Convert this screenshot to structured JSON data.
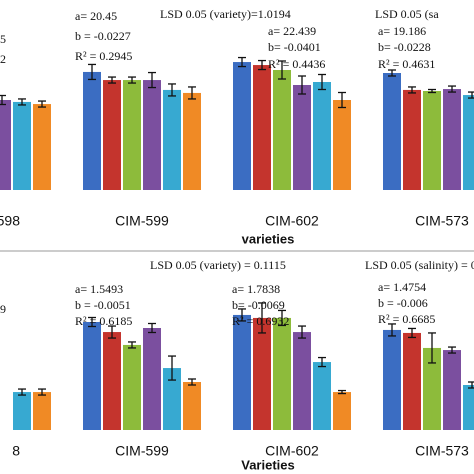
{
  "chart_data": [
    {
      "type": "bar",
      "categories": [
        "598",
        "CIM-599",
        "CIM-602",
        "CIM-573"
      ],
      "x_label": "varieties",
      "ylim": [
        0,
        100
      ],
      "annotations": [
        "5",
        "2",
        "a= 20.45",
        "b = -0.0227",
        "R² = 0.2945",
        "LSD 0.05 (variety)=1.0194",
        "a= 22.439",
        "b= -0.0401",
        "R² = 0.4436",
        "LSD 0.05 (sa",
        "a= 19.186",
        "b= -0.0228",
        "R² = 0.4631"
      ],
      "series": [
        {
          "color": "#3b6dc2",
          "values": [
            null,
            78.7,
            85.3,
            78
          ],
          "errors": [
            null,
            5,
            3,
            2
          ]
        },
        {
          "color": "#c4342d",
          "values": [
            null,
            73.3,
            83.3,
            66.7
          ],
          "errors": [
            null,
            2,
            3,
            2
          ]
        },
        {
          "color": "#8dbb3b",
          "values": [
            null,
            73.3,
            80,
            66
          ],
          "errors": [
            null,
            2,
            6,
            1
          ]
        },
        {
          "color": "#7b4f9f",
          "values": [
            60,
            73.3,
            70,
            67.3
          ],
          "errors": [
            3,
            5,
            6,
            2
          ]
        },
        {
          "color": "#37a9d1",
          "values": [
            58.7,
            66.7,
            72,
            63.3
          ],
          "errors": [
            2,
            4,
            5,
            2
          ]
        },
        {
          "color": "#f08a25",
          "values": [
            57.3,
            64.7,
            60,
            null
          ],
          "errors": [
            2,
            4,
            5,
            null
          ]
        }
      ]
    },
    {
      "type": "bar",
      "categories": [
        "8",
        "CIM-599",
        "CIM-602",
        "CIM-573"
      ],
      "x_label": "Varieties",
      "ylim": [
        0,
        100
      ],
      "annotations": [
        "9",
        "LSD 0.05 (variety) = 0.1115",
        "a= 1.5493",
        "b = -0.0051",
        "R² = 0.6185",
        "a= 1.7838",
        "b= -0.0069",
        "R² = 0.6932",
        "LSD 0.05 (salinity) = 0.",
        "a= 1.4754",
        "b = -0.006",
        "R² = 0.6685"
      ],
      "series": [
        {
          "color": "#3b6dc2",
          "values": [
            null,
            72,
            76.7,
            66.7
          ],
          "errors": [
            null,
            3,
            4,
            4
          ]
        },
        {
          "color": "#c4342d",
          "values": [
            null,
            65.3,
            74.7,
            64.7
          ],
          "errors": [
            null,
            4,
            10,
            3
          ]
        },
        {
          "color": "#8dbb3b",
          "values": [
            null,
            56.7,
            74.7,
            54.7
          ],
          "errors": [
            null,
            2,
            5,
            10
          ]
        },
        {
          "color": "#7b4f9f",
          "values": [
            null,
            68,
            65.3,
            53.3
          ],
          "errors": [
            null,
            3,
            4,
            2
          ]
        },
        {
          "color": "#37a9d1",
          "values": [
            25.3,
            41.3,
            45.3,
            30
          ],
          "errors": [
            2,
            8,
            3,
            2
          ]
        },
        {
          "color": "#f08a25",
          "values": [
            25.3,
            32,
            25.3,
            null
          ],
          "errors": [
            2,
            2,
            1,
            null
          ]
        }
      ]
    }
  ]
}
